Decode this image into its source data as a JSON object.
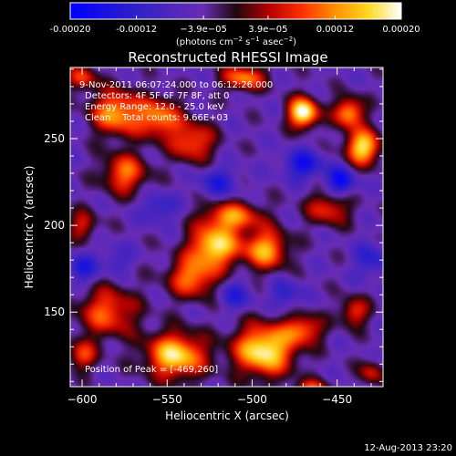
{
  "chart_data": {
    "type": "heatmap",
    "title": "Reconstructed RHESSI Image",
    "xlabel": "Heliocentric X (arcsec)",
    "ylabel": "Heliocentric Y (arcsec)",
    "xlim": [
      -607,
      -423
    ],
    "ylim": [
      107,
      291
    ],
    "x_ticks": [
      -600,
      -550,
      -500,
      -450
    ],
    "y_ticks": [
      150,
      200,
      250
    ],
    "colorbar": {
      "range": [
        -0.0002,
        0.0002
      ],
      "tick_values": [
        -0.0002,
        -0.00012,
        -3.9e-05,
        3.9e-05,
        0.00012,
        0.0002
      ],
      "tick_labels": [
        "-0.00020",
        "-0.00012",
        "−3.9e−05",
        "3.9e−05",
        "0.00012",
        "0.00020"
      ],
      "unit_parts": [
        "(photons cm",
        "−2",
        " s",
        "−1",
        " asec",
        "−2",
        ")"
      ],
      "stops": [
        {
          "v": -0.0002,
          "color": "#0000ff"
        },
        {
          "v": -0.00012,
          "color": "#3020c8"
        },
        {
          "v": -4e-05,
          "color": "#6a2cb4"
        },
        {
          "v": 0.0,
          "color": "#200810"
        },
        {
          "v": 4e-05,
          "color": "#b40000"
        },
        {
          "v": 8e-05,
          "color": "#ff3000"
        },
        {
          "v": 0.00012,
          "color": "#ff9000"
        },
        {
          "v": 0.00016,
          "color": "#ffd820"
        },
        {
          "v": 0.0002,
          "color": "#ffffff"
        }
      ]
    },
    "annotations": {
      "time_range": "9-Nov-2011 06:07:24.000 to 06:12:26.000",
      "detectors": "Detectors: 4F 5F 6F 7F 8F, att 0",
      "energy_range": "Energy Range: 12.0 - 25.0 keV",
      "clean_counts": "Clean    Total counts: 9.66E+03",
      "peak_position": "Position of Peak = [-469,260]"
    },
    "base_level": -4.5e-05,
    "sources": [
      {
        "x": -522,
        "y": 188,
        "sx": 10,
        "sy": 8,
        "a": 0.00022
      },
      {
        "x": -492,
        "y": 186,
        "sx": 9,
        "sy": 8,
        "a": 0.00018
      },
      {
        "x": -512,
        "y": 205,
        "sx": 12,
        "sy": 6,
        "a": 0.00016
      },
      {
        "x": -535,
        "y": 170,
        "sx": 10,
        "sy": 8,
        "a": 0.00016
      },
      {
        "x": -545,
        "y": 125,
        "sx": 12,
        "sy": 9,
        "a": 0.00022
      },
      {
        "x": -493,
        "y": 128,
        "sx": 12,
        "sy": 10,
        "a": 0.00024
      },
      {
        "x": -470,
        "y": 140,
        "sx": 8,
        "sy": 6,
        "a": 0.00014
      },
      {
        "x": -580,
        "y": 265,
        "sx": 10,
        "sy": 9,
        "a": 0.00018
      },
      {
        "x": -555,
        "y": 262,
        "sx": 9,
        "sy": 8,
        "a": 0.00016
      },
      {
        "x": -575,
        "y": 230,
        "sx": 9,
        "sy": 8,
        "a": 0.00015
      },
      {
        "x": -535,
        "y": 248,
        "sx": 9,
        "sy": 8,
        "a": 0.00014
      },
      {
        "x": -585,
        "y": 150,
        "sx": 12,
        "sy": 10,
        "a": 0.00014
      },
      {
        "x": -470,
        "y": 265,
        "sx": 6,
        "sy": 6,
        "a": 0.00026
      },
      {
        "x": -435,
        "y": 245,
        "sx": 7,
        "sy": 7,
        "a": 0.00022
      },
      {
        "x": -443,
        "y": 265,
        "sx": 6,
        "sy": 6,
        "a": 0.00018
      },
      {
        "x": -505,
        "y": 285,
        "sx": 9,
        "sy": 5,
        "a": 0.00016
      },
      {
        "x": -455,
        "y": 210,
        "sx": 9,
        "sy": 7,
        "a": 0.00012
      },
      {
        "x": -600,
        "y": 200,
        "sx": 6,
        "sy": 6,
        "a": 0.0001
      },
      {
        "x": -440,
        "y": 150,
        "sx": 6,
        "sy": 6,
        "a": 0.00012
      },
      {
        "x": -430,
        "y": 115,
        "sx": 5,
        "sy": 5,
        "a": 0.0001
      },
      {
        "x": -465,
        "y": 105,
        "sx": 7,
        "sy": 4,
        "a": 0.00014
      },
      {
        "x": -600,
        "y": 125,
        "sx": 6,
        "sy": 6,
        "a": 0.00012
      },
      {
        "x": -600,
        "y": 285,
        "sx": 6,
        "sy": 5,
        "a": 0.00012
      },
      {
        "x": -600,
        "y": 175,
        "sx": 6,
        "sy": 6,
        "a": -0.0001
      },
      {
        "x": -510,
        "y": 160,
        "sx": 7,
        "sy": 6,
        "a": -8e-05
      },
      {
        "x": -470,
        "y": 235,
        "sx": 8,
        "sy": 6,
        "a": -0.00012
      },
      {
        "x": -448,
        "y": 225,
        "sx": 6,
        "sy": 6,
        "a": -0.00014
      },
      {
        "x": -520,
        "y": 225,
        "sx": 8,
        "sy": 6,
        "a": -9e-05
      },
      {
        "x": -480,
        "y": 160,
        "sx": 6,
        "sy": 6,
        "a": -8e-05
      },
      {
        "x": -555,
        "y": 210,
        "sx": 7,
        "sy": 6,
        "a": -8e-05
      },
      {
        "x": -580,
        "y": 180,
        "sx": 6,
        "sy": 6,
        "a": -6e-05
      },
      {
        "x": -430,
        "y": 180,
        "sx": 7,
        "sy": 7,
        "a": -8e-05
      }
    ]
  },
  "footer": {
    "timestamp": "12-Aug-2013 23:20"
  }
}
